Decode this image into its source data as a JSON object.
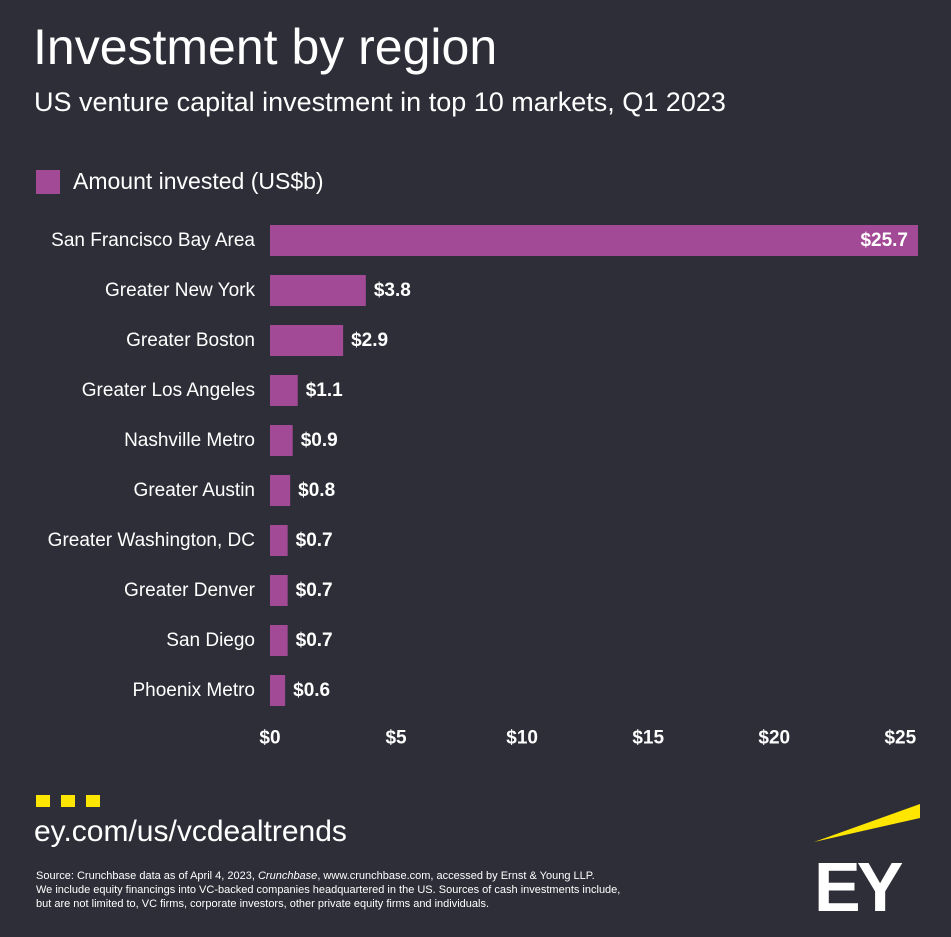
{
  "title": "Investment by region",
  "subtitle": "US venture capital investment in top 10 markets, Q1 2023",
  "colors": {
    "background": "#2e2e38",
    "bar": "#a24a95",
    "accent": "#ffe600",
    "text": "#ffffff"
  },
  "chart_data": {
    "type": "bar",
    "orientation": "horizontal",
    "categories": [
      "San Francisco Bay Area",
      "Greater New York",
      "Greater Boston",
      "Greater Los Angeles",
      "Nashville Metro",
      "Greater Austin",
      "Greater Washington, DC",
      "Greater Denver",
      "San Diego",
      "Phoenix Metro"
    ],
    "series": [
      {
        "name": "Amount invested (US$b)",
        "values": [
          25.7,
          3.8,
          2.9,
          1.1,
          0.9,
          0.8,
          0.7,
          0.7,
          0.7,
          0.6
        ]
      }
    ],
    "data_labels": [
      "$25.7",
      "$3.8",
      "$2.9",
      "$1.1",
      "$0.9",
      "$0.8",
      "$0.7",
      "$0.7",
      "$0.7",
      "$0.6"
    ],
    "x_ticks": [
      0,
      5,
      10,
      15,
      20,
      25
    ],
    "x_tick_labels": [
      "$0",
      "$5",
      "$10",
      "$15",
      "$20",
      "$25"
    ],
    "xlim": [
      0,
      25.7
    ],
    "xlabel": "",
    "ylabel": "",
    "grid": false,
    "legend_position": "top-left"
  },
  "footer": {
    "url": "ey.com/us/vcdealtrends",
    "source_prefix": "Source: Crunchbase data as of April 4, 2023,",
    "source_italic": "Crunchbase",
    "source_suffix": ", www.crunchbase.com, accessed by Ernst & Young LLP.",
    "note_line1": "We include equity financings into VC-backed companies headquartered in the US. Sources of cash investments include,",
    "note_line2": "but are not limited to, VC firms, corporate investors, other private equity firms and individuals.",
    "logo_text": "EY"
  },
  "icons": {
    "dots": "three-yellow-squares-icon",
    "logo": "ey-beam-logo"
  }
}
